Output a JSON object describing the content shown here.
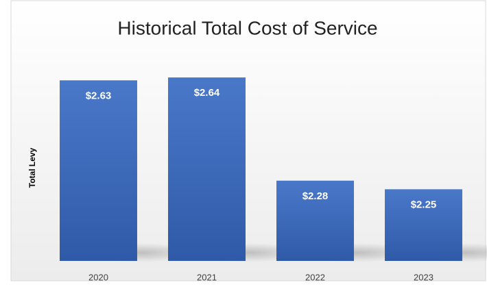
{
  "chart_data": {
    "type": "bar",
    "title": "Historical Total Cost of Service",
    "y_label": "Total Levy",
    "categories": [
      "2020",
      "2021",
      "2022",
      "2023"
    ],
    "values": [
      2.63,
      2.64,
      2.28,
      2.25
    ],
    "value_labels": [
      "$2.63",
      "$2.64",
      "$2.28",
      "$2.25"
    ],
    "color": "#4472c4",
    "ylim": [
      2,
      2.7
    ],
    "grid": false
  }
}
